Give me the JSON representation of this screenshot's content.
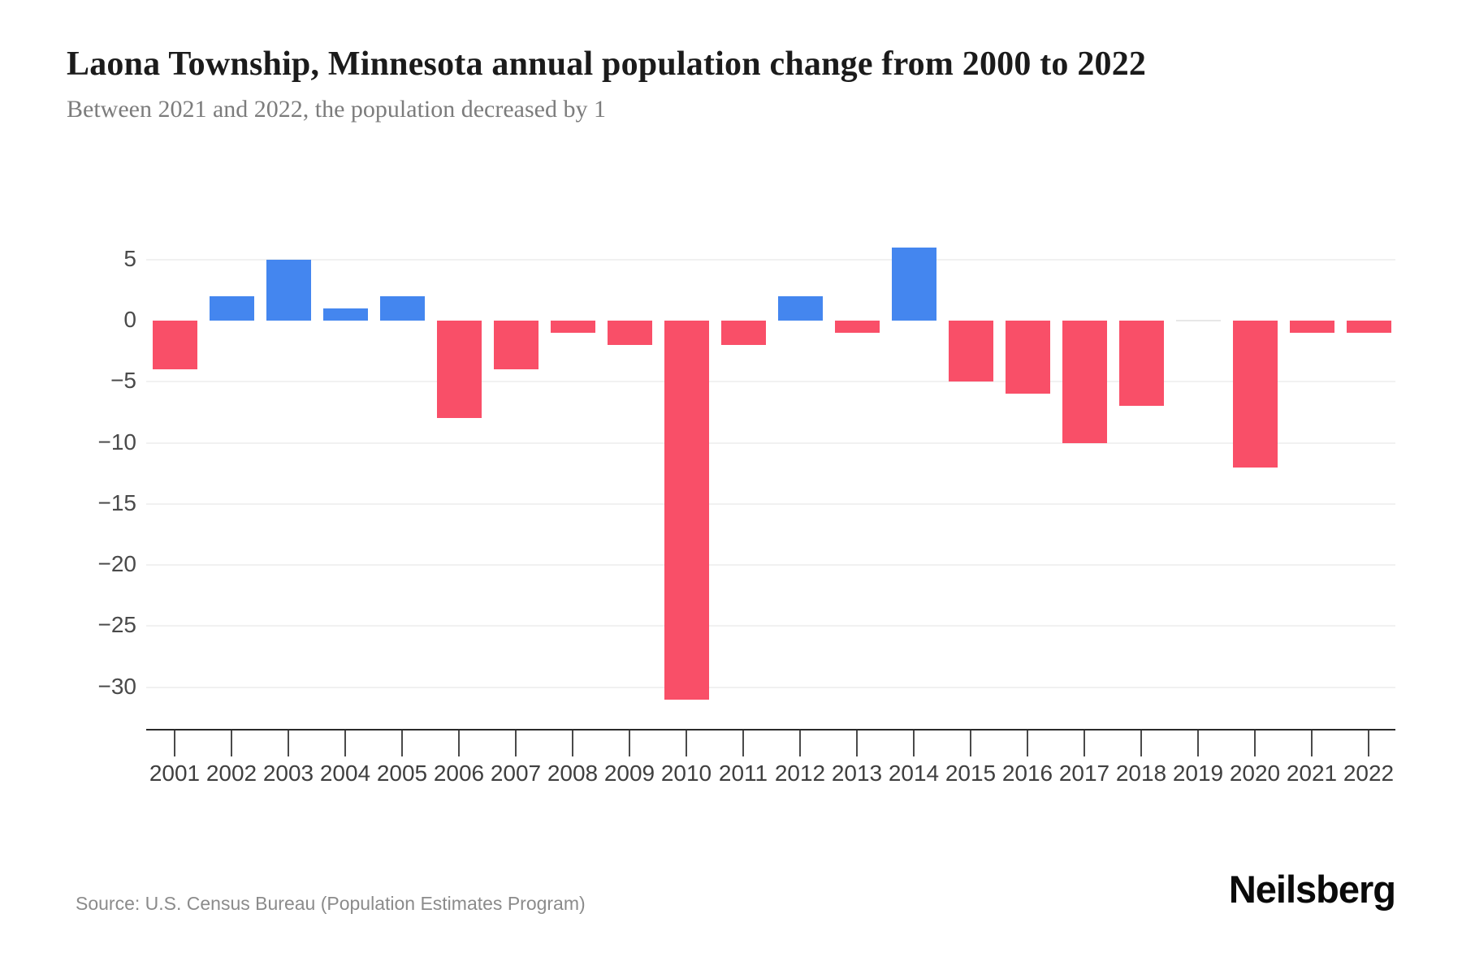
{
  "chart_data": {
    "type": "bar",
    "title": "Laona Township, Minnesota annual population change from 2000 to 2022",
    "subtitle": "Between 2021 and 2022, the population decreased by 1",
    "categories": [
      "2001",
      "2002",
      "2003",
      "2004",
      "2005",
      "2006",
      "2007",
      "2008",
      "2009",
      "2010",
      "2011",
      "2012",
      "2013",
      "2014",
      "2015",
      "2016",
      "2017",
      "2018",
      "2019",
      "2020",
      "2021",
      "2022"
    ],
    "values": [
      -4,
      2,
      5,
      1,
      2,
      -8,
      -4,
      -1,
      -2,
      -31,
      -2,
      2,
      -1,
      6,
      -5,
      -6,
      -10,
      -7,
      0,
      -12,
      -1,
      -1
    ],
    "yticks": [
      5,
      0,
      -5,
      -10,
      -15,
      -20,
      -25,
      -30
    ],
    "ylim": [
      -32,
      7
    ],
    "grid": true,
    "legend": "none",
    "xlabel": "",
    "ylabel": "",
    "positive_color": "#4486EF",
    "negative_color": "#F94F68",
    "zero_marker_color": "#E7E7E7",
    "gridline_color": "#F1F1F1",
    "source": "Source: U.S. Census Bureau (Population Estimates Program)",
    "brand": "Neilsberg"
  }
}
